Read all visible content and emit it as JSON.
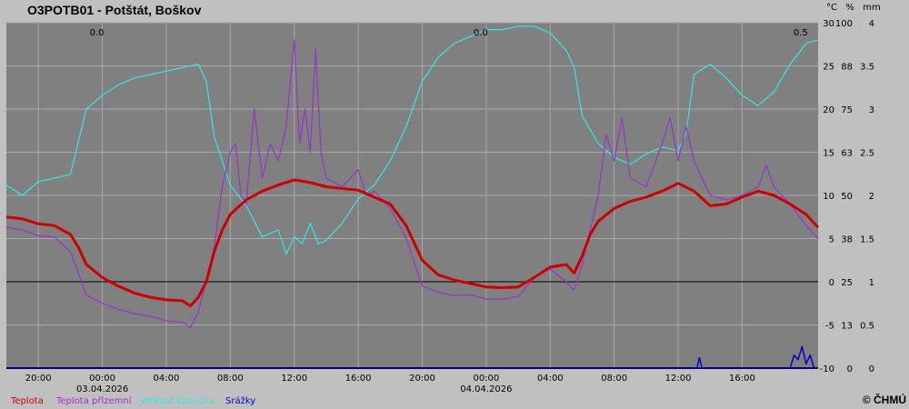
{
  "station": {
    "title": "O3POTB01 - Potštát, Boškov",
    "copyright": "© ČHMÚ"
  },
  "colors": {
    "background": "#c0c0c0",
    "plot_bg": "#808080",
    "grid": "#a8a8a8",
    "temperature": "#cc0000",
    "ground_temperature": "#9933cc",
    "humidity": "#33e6e6",
    "precipitation": "#0000cc"
  },
  "chart_data": {
    "type": "line",
    "grid": true,
    "legend_position": "bottom-left",
    "x_range": [
      "2026-04-02 18:00",
      "2026-04-04 20:45"
    ],
    "x_ticks": [
      {
        "time": "2026-04-02 20:00",
        "label": "20:00",
        "date": ""
      },
      {
        "time": "2026-04-03 00:00",
        "label": "00:00",
        "date": "03.04.2026"
      },
      {
        "time": "2026-04-03 04:00",
        "label": "04:00",
        "date": ""
      },
      {
        "time": "2026-04-03 08:00",
        "label": "08:00",
        "date": ""
      },
      {
        "time": "2026-04-03 12:00",
        "label": "12:00",
        "date": ""
      },
      {
        "time": "2026-04-03 16:00",
        "label": "16:00",
        "date": ""
      },
      {
        "time": "2026-04-03 20:00",
        "label": "20:00",
        "date": ""
      },
      {
        "time": "2026-04-04 00:00",
        "label": "00:00",
        "date": "04.04.2026"
      },
      {
        "time": "2026-04-04 04:00",
        "label": "04:00",
        "date": ""
      },
      {
        "time": "2026-04-04 08:00",
        "label": "08:00",
        "date": ""
      },
      {
        "time": "2026-04-04 12:00",
        "label": "12:00",
        "date": ""
      },
      {
        "time": "2026-04-04 16:00",
        "label": "16:00",
        "date": ""
      }
    ],
    "axes": {
      "temperature": {
        "unit": "°C",
        "range": [
          -10,
          30
        ],
        "ticks": [
          "-10",
          "-5",
          "0",
          "5",
          "10",
          "15",
          "20",
          "25",
          "30"
        ]
      },
      "humidity": {
        "unit": "%",
        "range": [
          0,
          100
        ],
        "ticks": [
          "0",
          "13",
          "25",
          "38",
          "50",
          "63",
          "75",
          "88",
          "100"
        ]
      },
      "precipitation": {
        "unit": "mm",
        "range": [
          0,
          4
        ],
        "ticks": [
          "0",
          "0.5",
          "1",
          "1.5",
          "2",
          "2.5",
          "3",
          "3.5",
          "4"
        ]
      }
    },
    "daily_precip_totals": [
      {
        "time": "2026-04-03 00:00",
        "label": "0.0"
      },
      {
        "time": "2026-04-04 00:00",
        "label": "0.0"
      },
      {
        "time": "2026-04-04 20:00",
        "label": "0.5"
      }
    ],
    "series": [
      {
        "name": "Teplota",
        "axis": "temperature",
        "color": "#cc0000",
        "points": [
          [
            "2026-04-02 18:00",
            7.5
          ],
          [
            "2026-04-02 19:00",
            7.3
          ],
          [
            "2026-04-02 20:00",
            6.7
          ],
          [
            "2026-04-02 21:00",
            6.5
          ],
          [
            "2026-04-02 22:00",
            5.5
          ],
          [
            "2026-04-02 22:30",
            4.0
          ],
          [
            "2026-04-02 23:00",
            2.0
          ],
          [
            "2026-04-03 00:00",
            0.5
          ],
          [
            "2026-04-03 01:00",
            -0.5
          ],
          [
            "2026-04-03 02:00",
            -1.3
          ],
          [
            "2026-04-03 03:00",
            -1.8
          ],
          [
            "2026-04-03 04:00",
            -2.1
          ],
          [
            "2026-04-03 05:00",
            -2.2
          ],
          [
            "2026-04-03 05:30",
            -2.8
          ],
          [
            "2026-04-03 06:00",
            -1.8
          ],
          [
            "2026-04-03 06:30",
            0.0
          ],
          [
            "2026-04-03 07:00",
            3.5
          ],
          [
            "2026-04-03 07:30",
            6.0
          ],
          [
            "2026-04-03 08:00",
            7.8
          ],
          [
            "2026-04-03 09:00",
            9.5
          ],
          [
            "2026-04-03 10:00",
            10.5
          ],
          [
            "2026-04-03 11:00",
            11.2
          ],
          [
            "2026-04-03 12:00",
            11.8
          ],
          [
            "2026-04-03 13:00",
            11.5
          ],
          [
            "2026-04-03 14:00",
            11.0
          ],
          [
            "2026-04-03 15:00",
            10.8
          ],
          [
            "2026-04-03 16:00",
            10.6
          ],
          [
            "2026-04-03 17:00",
            9.8
          ],
          [
            "2026-04-03 18:00",
            9.0
          ],
          [
            "2026-04-03 19:00",
            6.5
          ],
          [
            "2026-04-03 20:00",
            2.5
          ],
          [
            "2026-04-03 21:00",
            0.8
          ],
          [
            "2026-04-03 22:00",
            0.2
          ],
          [
            "2026-04-03 23:00",
            -0.2
          ],
          [
            "2026-04-04 00:00",
            -0.6
          ],
          [
            "2026-04-04 01:00",
            -0.7
          ],
          [
            "2026-04-04 02:00",
            -0.6
          ],
          [
            "2026-04-04 03:00",
            0.5
          ],
          [
            "2026-04-04 04:00",
            1.7
          ],
          [
            "2026-04-04 05:00",
            2.0
          ],
          [
            "2026-04-04 05:30",
            1.0
          ],
          [
            "2026-04-04 06:00",
            3.0
          ],
          [
            "2026-04-04 06:30",
            5.5
          ],
          [
            "2026-04-04 07:00",
            7.0
          ],
          [
            "2026-04-04 08:00",
            8.5
          ],
          [
            "2026-04-04 09:00",
            9.3
          ],
          [
            "2026-04-04 10:00",
            9.8
          ],
          [
            "2026-04-04 11:00",
            10.5
          ],
          [
            "2026-04-04 12:00",
            11.4
          ],
          [
            "2026-04-04 13:00",
            10.5
          ],
          [
            "2026-04-04 14:00",
            8.8
          ],
          [
            "2026-04-04 15:00",
            9.0
          ],
          [
            "2026-04-04 16:00",
            9.8
          ],
          [
            "2026-04-04 17:00",
            10.5
          ],
          [
            "2026-04-04 18:00",
            10.0
          ],
          [
            "2026-04-04 19:00",
            9.0
          ],
          [
            "2026-04-04 20:00",
            7.8
          ],
          [
            "2026-04-04 20:45",
            6.3
          ]
        ]
      },
      {
        "name": "Teplota přízemní",
        "axis": "temperature",
        "color": "#9933cc",
        "points": [
          [
            "2026-04-02 18:00",
            6.3
          ],
          [
            "2026-04-02 19:00",
            6.0
          ],
          [
            "2026-04-02 20:00",
            5.3
          ],
          [
            "2026-04-02 21:00",
            5.2
          ],
          [
            "2026-04-02 22:00",
            3.5
          ],
          [
            "2026-04-02 22:30",
            1.0
          ],
          [
            "2026-04-02 23:00",
            -1.5
          ],
          [
            "2026-04-03 00:00",
            -2.5
          ],
          [
            "2026-04-03 01:00",
            -3.2
          ],
          [
            "2026-04-03 02:00",
            -3.7
          ],
          [
            "2026-04-03 03:00",
            -4.0
          ],
          [
            "2026-04-03 04:00",
            -4.5
          ],
          [
            "2026-04-03 05:00",
            -4.7
          ],
          [
            "2026-04-03 05:30",
            -5.3
          ],
          [
            "2026-04-03 06:00",
            -3.5
          ],
          [
            "2026-04-03 07:00",
            4.0
          ],
          [
            "2026-04-03 07:30",
            11.0
          ],
          [
            "2026-04-03 08:00",
            15.0
          ],
          [
            "2026-04-03 08:20",
            16.0
          ],
          [
            "2026-04-03 08:40",
            10.0
          ],
          [
            "2026-04-03 09:00",
            9.0
          ],
          [
            "2026-04-03 09:30",
            20.0
          ],
          [
            "2026-04-03 10:00",
            12.0
          ],
          [
            "2026-04-03 10:30",
            16.0
          ],
          [
            "2026-04-03 11:00",
            14.0
          ],
          [
            "2026-04-03 11:30",
            18.0
          ],
          [
            "2026-04-03 12:00",
            28.0
          ],
          [
            "2026-04-03 12:20",
            16.0
          ],
          [
            "2026-04-03 12:40",
            20.0
          ],
          [
            "2026-04-03 13:00",
            15.0
          ],
          [
            "2026-04-03 13:20",
            27.0
          ],
          [
            "2026-04-03 13:40",
            15.0
          ],
          [
            "2026-04-03 14:00",
            12.0
          ],
          [
            "2026-04-03 15:00",
            11.0
          ],
          [
            "2026-04-03 16:00",
            13.0
          ],
          [
            "2026-04-03 16:30",
            10.0
          ],
          [
            "2026-04-03 17:00",
            10.5
          ],
          [
            "2026-04-03 18:00",
            8.5
          ],
          [
            "2026-04-03 19:00",
            5.0
          ],
          [
            "2026-04-03 20:00",
            -0.5
          ],
          [
            "2026-04-03 21:00",
            -1.2
          ],
          [
            "2026-04-03 22:00",
            -1.6
          ],
          [
            "2026-04-03 23:00",
            -1.5
          ],
          [
            "2026-04-04 00:00",
            -2.0
          ],
          [
            "2026-04-04 01:00",
            -2.0
          ],
          [
            "2026-04-04 02:00",
            -1.7
          ],
          [
            "2026-04-04 03:00",
            0.5
          ],
          [
            "2026-04-04 04:00",
            1.5
          ],
          [
            "2026-04-04 05:00",
            0.0
          ],
          [
            "2026-04-04 05:30",
            -1.0
          ],
          [
            "2026-04-04 06:00",
            2.0
          ],
          [
            "2026-04-04 06:30",
            6.0
          ],
          [
            "2026-04-04 07:00",
            10.0
          ],
          [
            "2026-04-04 07:30",
            17.0
          ],
          [
            "2026-04-04 08:00",
            14.0
          ],
          [
            "2026-04-04 08:30",
            19.0
          ],
          [
            "2026-04-04 09:00",
            12.0
          ],
          [
            "2026-04-04 10:00",
            11.0
          ],
          [
            "2026-04-04 11:00",
            16.0
          ],
          [
            "2026-04-04 11:30",
            19.0
          ],
          [
            "2026-04-04 12:00",
            14.0
          ],
          [
            "2026-04-04 12:30",
            18.0
          ],
          [
            "2026-04-04 13:00",
            14.0
          ],
          [
            "2026-04-04 14:00",
            10.0
          ],
          [
            "2026-04-04 15:00",
            9.5
          ],
          [
            "2026-04-04 16:00",
            10.0
          ],
          [
            "2026-04-04 17:00",
            11.0
          ],
          [
            "2026-04-04 17:30",
            13.5
          ],
          [
            "2026-04-04 18:00",
            11.0
          ],
          [
            "2026-04-04 19:00",
            9.0
          ],
          [
            "2026-04-04 20:00",
            6.5
          ],
          [
            "2026-04-04 20:45",
            5.0
          ]
        ]
      },
      {
        "name": "Vlhkost vzduchu",
        "axis": "humidity",
        "color": "#33e6e6",
        "points": [
          [
            "2026-04-02 18:00",
            53
          ],
          [
            "2026-04-02 19:00",
            50
          ],
          [
            "2026-04-02 20:00",
            54
          ],
          [
            "2026-04-02 21:00",
            55
          ],
          [
            "2026-04-02 22:00",
            56
          ],
          [
            "2026-04-02 23:00",
            75
          ],
          [
            "2026-04-03 00:00",
            79
          ],
          [
            "2026-04-03 01:00",
            82
          ],
          [
            "2026-04-03 02:00",
            84
          ],
          [
            "2026-04-03 03:00",
            85
          ],
          [
            "2026-04-03 04:00",
            86
          ],
          [
            "2026-04-03 05:00",
            87
          ],
          [
            "2026-04-03 06:00",
            88
          ],
          [
            "2026-04-03 06:30",
            83
          ],
          [
            "2026-04-03 07:00",
            67
          ],
          [
            "2026-04-03 07:30",
            60
          ],
          [
            "2026-04-03 08:00",
            53
          ],
          [
            "2026-04-03 09:00",
            47
          ],
          [
            "2026-04-03 10:00",
            38
          ],
          [
            "2026-04-03 11:00",
            40
          ],
          [
            "2026-04-03 11:30",
            33
          ],
          [
            "2026-04-03 12:00",
            38
          ],
          [
            "2026-04-03 12:30",
            36
          ],
          [
            "2026-04-03 13:00",
            42
          ],
          [
            "2026-04-03 13:30",
            36
          ],
          [
            "2026-04-03 14:00",
            37
          ],
          [
            "2026-04-03 15:00",
            42
          ],
          [
            "2026-04-03 16:00",
            49
          ],
          [
            "2026-04-03 17:00",
            53
          ],
          [
            "2026-04-03 18:00",
            60
          ],
          [
            "2026-04-03 19:00",
            70
          ],
          [
            "2026-04-03 20:00",
            83
          ],
          [
            "2026-04-03 21:00",
            90
          ],
          [
            "2026-04-03 22:00",
            94
          ],
          [
            "2026-04-03 23:00",
            96
          ],
          [
            "2026-04-04 00:00",
            98
          ],
          [
            "2026-04-04 01:00",
            98
          ],
          [
            "2026-04-04 02:00",
            99
          ],
          [
            "2026-04-04 03:00",
            99
          ],
          [
            "2026-04-04 04:00",
            97
          ],
          [
            "2026-04-04 05:00",
            92
          ],
          [
            "2026-04-04 05:30",
            87
          ],
          [
            "2026-04-04 06:00",
            73
          ],
          [
            "2026-04-04 07:00",
            65
          ],
          [
            "2026-04-04 08:00",
            61
          ],
          [
            "2026-04-04 09:00",
            59
          ],
          [
            "2026-04-04 10:00",
            62
          ],
          [
            "2026-04-04 11:00",
            64
          ],
          [
            "2026-04-04 12:00",
            63
          ],
          [
            "2026-04-04 12:30",
            68
          ],
          [
            "2026-04-04 13:00",
            85
          ],
          [
            "2026-04-04 14:00",
            88
          ],
          [
            "2026-04-04 15:00",
            84
          ],
          [
            "2026-04-04 16:00",
            79
          ],
          [
            "2026-04-04 17:00",
            76
          ],
          [
            "2026-04-04 18:00",
            80
          ],
          [
            "2026-04-04 19:00",
            88
          ],
          [
            "2026-04-04 20:00",
            94
          ],
          [
            "2026-04-04 20:45",
            95
          ]
        ]
      },
      {
        "name": "Srážky",
        "axis": "precipitation",
        "color": "#0000cc",
        "points": [
          [
            "2026-04-02 18:00",
            0
          ],
          [
            "2026-04-04 13:10",
            0
          ],
          [
            "2026-04-04 13:20",
            0.12
          ],
          [
            "2026-04-04 13:30",
            0
          ],
          [
            "2026-04-04 19:00",
            0
          ],
          [
            "2026-04-04 19:15",
            0.15
          ],
          [
            "2026-04-04 19:30",
            0.1
          ],
          [
            "2026-04-04 19:45",
            0.25
          ],
          [
            "2026-04-04 20:00",
            0.05
          ],
          [
            "2026-04-04 20:15",
            0.15
          ],
          [
            "2026-04-04 20:30",
            0
          ],
          [
            "2026-04-04 20:45",
            0
          ]
        ]
      }
    ]
  }
}
